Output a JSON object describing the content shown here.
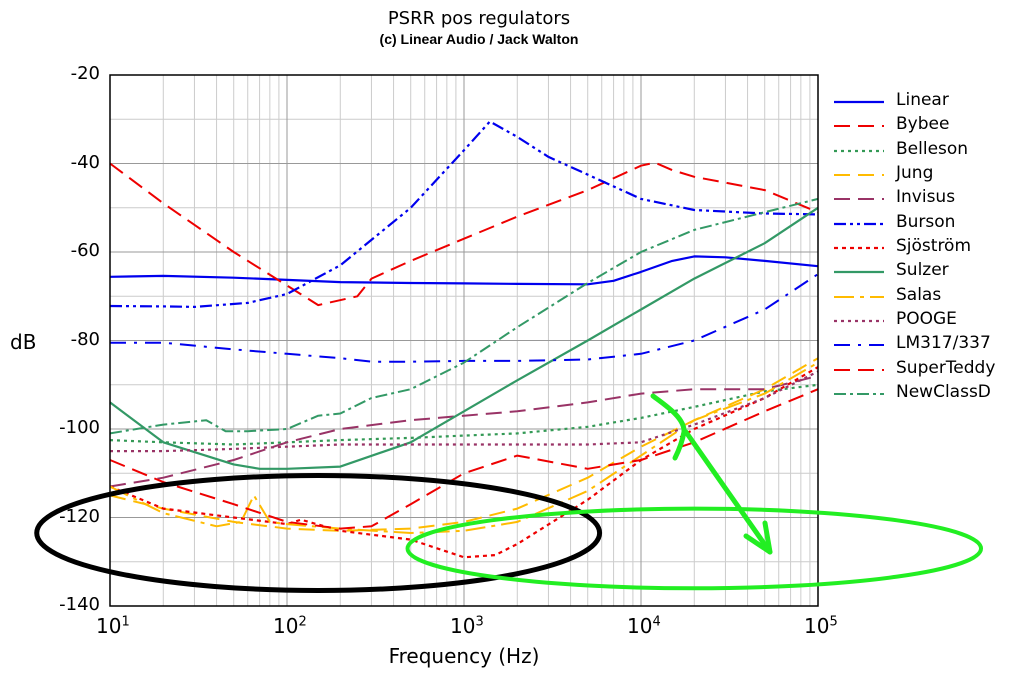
{
  "chart_data": {
    "type": "line",
    "title": "PSRR pos regulators",
    "subtitle": "(c) Linear Audio / Jack Walton",
    "xlabel": "Frequency (Hz)",
    "ylabel": "dB",
    "x_scale": "log",
    "xlim": [
      10,
      100000
    ],
    "ylim": [
      -140,
      -20
    ],
    "x_ticks": [
      {
        "base": "10",
        "exp": "1"
      },
      {
        "base": "10",
        "exp": "2"
      },
      {
        "base": "10",
        "exp": "3"
      },
      {
        "base": "10",
        "exp": "4"
      },
      {
        "base": "10",
        "exp": "5"
      }
    ],
    "y_ticks": [
      "-20",
      "-40",
      "-60",
      "-80",
      "-100",
      "-120",
      "-140"
    ],
    "grid": true,
    "legend_position": "right",
    "series": [
      {
        "name": "Linear",
        "color": "#0000ee",
        "dash": "",
        "width": 2.2,
        "x": [
          10,
          20,
          50,
          100,
          200,
          500,
          1000,
          2000,
          5000,
          7000,
          10000,
          15000,
          20000,
          30000,
          50000,
          100000
        ],
        "y": [
          -65.6,
          -65.4,
          -65.8,
          -66.3,
          -66.8,
          -67.0,
          -67.1,
          -67.2,
          -67.3,
          -66.5,
          -64.5,
          -62.0,
          -61.0,
          -61.2,
          -62.0,
          -63.2
        ]
      },
      {
        "name": "Bybee",
        "color": "#ee0000",
        "dash": "16,8",
        "width": 2,
        "x": [
          10,
          20,
          50,
          150,
          250,
          300,
          500,
          1000,
          2000,
          5000,
          10000,
          12000,
          15000,
          20000,
          50000,
          100000
        ],
        "y": [
          -40,
          -49,
          -60,
          -72,
          -70,
          -66,
          -62,
          -57,
          -52,
          -46,
          -40.5,
          -39.8,
          -41.5,
          -43,
          -46,
          -51
        ]
      },
      {
        "name": "Belleson",
        "color": "#339955",
        "dash": "3,4",
        "width": 2.2,
        "x": [
          10,
          20,
          50,
          100,
          200,
          500,
          1000,
          2000,
          5000,
          10000,
          20000,
          50000,
          100000
        ],
        "y": [
          -102.5,
          -103,
          -103.5,
          -103,
          -102.5,
          -102,
          -101.5,
          -101,
          -99.5,
          -97.5,
          -95,
          -91.5,
          -90
        ]
      },
      {
        "name": "Jung",
        "color": "#ffbb00",
        "dash": "16,8",
        "width": 2,
        "x": [
          10,
          20,
          50,
          100,
          200,
          500,
          1000,
          2000,
          5000,
          10000,
          20000,
          50000,
          100000
        ],
        "y": [
          -115,
          -118,
          -121,
          -122.5,
          -123,
          -122.5,
          -121,
          -118,
          -111,
          -104,
          -98,
          -91,
          -84
        ]
      },
      {
        "name": "Invisus",
        "color": "#993366",
        "dash": "16,8",
        "width": 2,
        "x": [
          10,
          20,
          50,
          100,
          200,
          500,
          1000,
          2000,
          5000,
          10000,
          20000,
          50000,
          100000
        ],
        "y": [
          -113,
          -111,
          -107,
          -103,
          -100,
          -98,
          -97,
          -96,
          -94,
          -92,
          -91,
          -91,
          -88
        ]
      },
      {
        "name": "Burson",
        "color": "#0000ee",
        "dash": "12,4,3,4,3,4",
        "width": 2.2,
        "x": [
          10,
          20,
          30,
          60,
          100,
          200,
          500,
          1000,
          1400,
          2000,
          3000,
          5000,
          10000,
          20000,
          50000,
          100000
        ],
        "y": [
          -72.2,
          -72.3,
          -72.4,
          -71.5,
          -69.5,
          -63,
          -50,
          -37,
          -30.5,
          -34,
          -38.5,
          -42.5,
          -48,
          -50.5,
          -51.3,
          -51.5
        ]
      },
      {
        "name": "Sjöström",
        "color": "#ee0000",
        "dash": "4,4",
        "width": 2.2,
        "x": [
          10,
          20,
          50,
          100,
          120,
          200,
          500,
          1000,
          1500,
          2000,
          5000,
          10000,
          20000,
          50000,
          100000
        ],
        "y": [
          -113,
          -118,
          -120,
          -121.5,
          -120.5,
          -123,
          -125,
          -129,
          -128.5,
          -126,
          -116,
          -107,
          -100,
          -93,
          -86
        ]
      },
      {
        "name": "Sulzer",
        "color": "#339966",
        "dash": "",
        "width": 2.2,
        "x": [
          10,
          20,
          50,
          70,
          100,
          200,
          500,
          1000,
          2000,
          5000,
          10000,
          20000,
          50000,
          100000
        ],
        "y": [
          -94,
          -103,
          -108,
          -109,
          -109,
          -108.5,
          -103,
          -96,
          -89,
          -80,
          -73,
          -66,
          -58,
          -50
        ]
      },
      {
        "name": "Salas",
        "color": "#ffbb00",
        "dash": "20,6,4,6",
        "width": 2,
        "x": [
          10,
          20,
          40,
          55,
          65,
          80,
          100,
          200,
          500,
          1000,
          2000,
          5000,
          10000,
          20000,
          50000,
          100000
        ],
        "y": [
          -113,
          -119,
          -122,
          -121,
          -115,
          -121,
          -121.5,
          -122.5,
          -123.5,
          -123,
          -121,
          -114,
          -106,
          -98,
          -92,
          -85
        ]
      },
      {
        "name": "POOGE",
        "color": "#993366",
        "dash": "3,4",
        "width": 2.2,
        "x": [
          10,
          20,
          50,
          100,
          200,
          500,
          1000,
          2000,
          5000,
          10000,
          20000,
          50000,
          100000
        ],
        "y": [
          -105,
          -105,
          -104.5,
          -104,
          -103.5,
          -103.5,
          -103.5,
          -103.5,
          -103.5,
          -103,
          -99,
          -93,
          -87
        ]
      },
      {
        "name": "LM317/337",
        "color": "#0000ee",
        "dash": "16,8,3,8",
        "width": 2,
        "x": [
          10,
          20,
          50,
          100,
          200,
          300,
          500,
          1000,
          2000,
          5000,
          10000,
          20000,
          50000,
          100000
        ],
        "y": [
          -80.5,
          -80.5,
          -82,
          -83,
          -84,
          -84.8,
          -84.8,
          -84.6,
          -84.6,
          -84.3,
          -83,
          -80,
          -73,
          -65
        ]
      },
      {
        "name": "SuperTeddy",
        "color": "#ee0000",
        "dash": "16,8",
        "width": 2,
        "x": [
          10,
          20,
          50,
          100,
          200,
          300,
          500,
          1000,
          2000,
          5000,
          10000,
          20000,
          50000,
          100000
        ],
        "y": [
          -107,
          -112,
          -117,
          -121,
          -122.5,
          -122,
          -117,
          -110,
          -106,
          -109,
          -107,
          -103,
          -96,
          -91
        ]
      },
      {
        "name": "NewClassD",
        "color": "#339966",
        "dash": "12,4,3,4",
        "width": 2,
        "x": [
          10,
          20,
          35,
          45,
          60,
          100,
          150,
          200,
          300,
          500,
          1000,
          2000,
          5000,
          10000,
          20000,
          50000,
          100000
        ],
        "y": [
          -101,
          -99,
          -98,
          -100.5,
          -100.5,
          -100,
          -97,
          -96.5,
          -93,
          -91,
          -85,
          -77,
          -67,
          -60,
          -55,
          -51,
          -48
        ]
      }
    ]
  },
  "annotations": {
    "black_ellipse": {
      "color": "#000000",
      "cx_hz": 150,
      "cy_db": -123.5,
      "rx_decades": 1.59,
      "ry_db": 13
    },
    "green_ellipse": {
      "color": "#22ee22",
      "cx_hz": 20000,
      "cy_db": -127,
      "rx_decades": 1.62,
      "ry_db": 9
    },
    "green_arrow": {
      "color": "#22ee22"
    }
  }
}
